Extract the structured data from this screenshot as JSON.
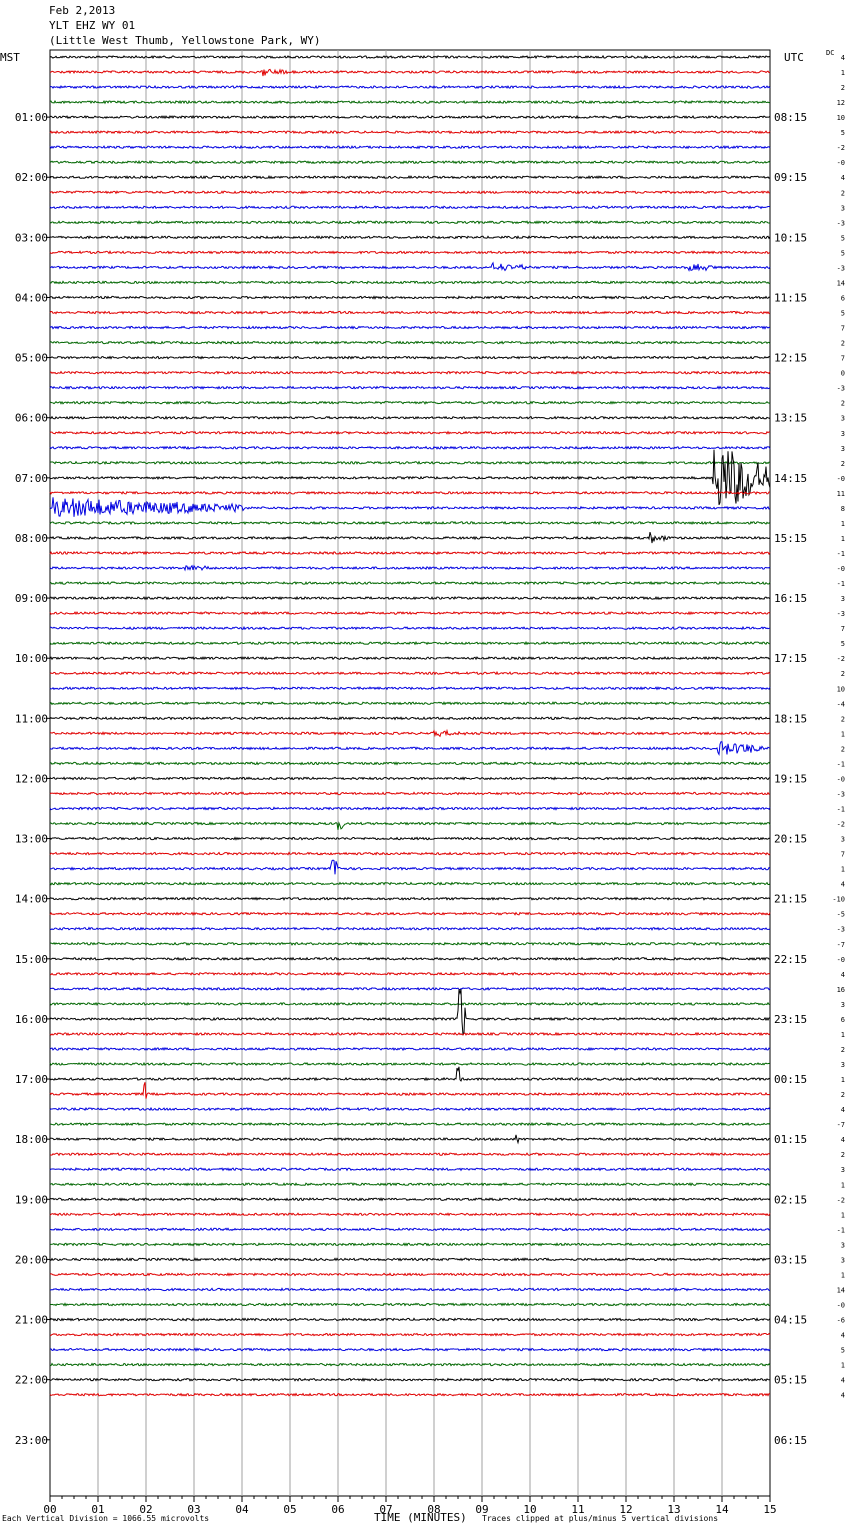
{
  "header": {
    "date": "Feb 2,2013",
    "station": "YLT EHZ WY 01",
    "location": "(Little West Thumb, Yellowstone Park, WY)"
  },
  "left_zone": "MST",
  "right_zone": "UTC",
  "dc_label": "DC",
  "x_axis_title": "TIME (MINUTES)",
  "footer_left": "Each Vertical Division = 1066.55 microvolts",
  "footer_right": "Traces clipped at plus/minus 5 vertical divisions",
  "colors": {
    "trace": [
      "#000000",
      "#e00000",
      "#0000e0",
      "#006600"
    ],
    "grid": "#a0a0a0"
  },
  "chart_data": {
    "type": "seismogram",
    "minutes_per_trace": 15,
    "x_ticks": [
      "00",
      "01",
      "02",
      "03",
      "04",
      "05",
      "06",
      "07",
      "08",
      "09",
      "10",
      "11",
      "12",
      "13",
      "14",
      "15"
    ],
    "hour_labels_left": [
      "01:00",
      "02:00",
      "03:00",
      "04:00",
      "05:00",
      "06:00",
      "07:00",
      "08:00",
      "09:00",
      "10:00",
      "11:00",
      "12:00",
      "13:00",
      "14:00",
      "15:00",
      "16:00",
      "17:00",
      "18:00",
      "19:00",
      "20:00",
      "21:00",
      "22:00",
      "23:00"
    ],
    "hour_labels_right": [
      "08:15",
      "09:15",
      "10:15",
      "11:15",
      "12:15",
      "13:15",
      "14:15",
      "15:15",
      "16:15",
      "17:15",
      "18:15",
      "19:15",
      "20:15",
      "21:15",
      "22:15",
      "23:15",
      "00:15",
      "01:15",
      "02:15",
      "03:15",
      "04:15",
      "05:15",
      "06:15"
    ],
    "dc_offsets": [
      "4",
      "1",
      "2",
      "12",
      "10",
      "5",
      "-2",
      "-0",
      "4",
      "2",
      "3",
      "-3",
      "5",
      "5",
      "-3",
      "14",
      "6",
      "5",
      "7",
      "2",
      "7",
      "0",
      "-3",
      "2",
      "3",
      "3",
      "3",
      "2",
      "-0",
      "11",
      "8",
      "1",
      "1",
      "-1",
      "-0",
      "-1",
      "3",
      "-3",
      "7",
      "5",
      "-2",
      "2",
      "10",
      "-4",
      "2",
      "1",
      "2",
      "-1",
      "-0",
      "-3",
      "-1",
      "-2",
      "3",
      "7",
      "1",
      "4",
      "-10",
      "-5",
      "-3",
      "-7",
      "-0",
      "4",
      "16",
      "3",
      "6",
      "1",
      "2",
      "3",
      "1",
      "2",
      "4",
      "-7",
      "4",
      "2",
      "3",
      "1",
      "-2",
      "1",
      "-1",
      "3",
      "3",
      "1",
      "14",
      "-0",
      "-6",
      "4",
      "5",
      "1",
      "4",
      "4"
    ],
    "events": [
      {
        "trace": 28,
        "minute": 13.8,
        "amplitude": 4.5,
        "duration": 1.2
      },
      {
        "trace": 30,
        "minute": 0.05,
        "amplitude": 1.2,
        "duration": 4.0
      },
      {
        "trace": 32,
        "minute": 12.5,
        "amplitude": 0.6,
        "duration": 0.4
      },
      {
        "trace": 34,
        "minute": 2.8,
        "amplitude": 0.5,
        "duration": 0.5
      },
      {
        "trace": 46,
        "minute": 13.9,
        "amplitude": 0.9,
        "duration": 1.0
      },
      {
        "trace": 51,
        "minute": 6.0,
        "amplitude": 1.0,
        "duration": 0.15
      },
      {
        "trace": 54,
        "minute": 5.85,
        "amplitude": 1.5,
        "duration": 0.2
      },
      {
        "trace": 64,
        "minute": 8.5,
        "amplitude": 5.0,
        "duration": 0.15
      },
      {
        "trace": 68,
        "minute": 8.45,
        "amplitude": 3.0,
        "duration": 0.12
      },
      {
        "trace": 72,
        "minute": 9.7,
        "amplitude": 2.0,
        "duration": 0.05
      },
      {
        "trace": 69,
        "minute": 1.95,
        "amplitude": 2.5,
        "duration": 0.05
      },
      {
        "trace": 14,
        "minute": 9.2,
        "amplitude": 0.5,
        "duration": 0.8
      },
      {
        "trace": 14,
        "minute": 13.3,
        "amplitude": 0.5,
        "duration": 0.5
      },
      {
        "trace": 1,
        "minute": 4.4,
        "amplitude": 0.4,
        "duration": 0.8
      },
      {
        "trace": 45,
        "minute": 8.0,
        "amplitude": 0.3,
        "duration": 1.0
      }
    ]
  }
}
